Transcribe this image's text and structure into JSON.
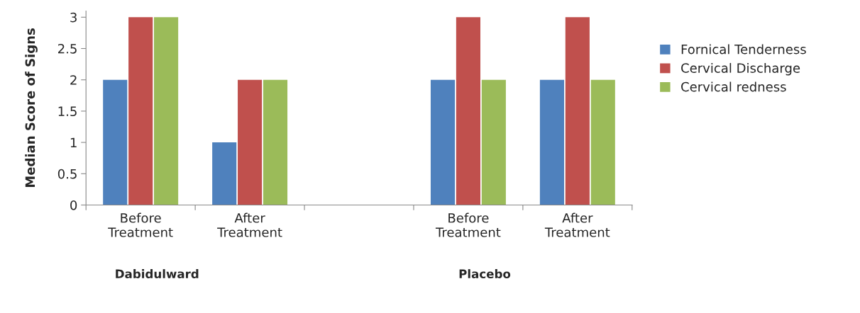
{
  "chart_data": {
    "type": "bar",
    "ylabel": "Median Score of Signs",
    "categories": [
      "Before\nTreatment",
      "After\nTreatment",
      null,
      "Before\nTreatment",
      "After\nTreatment"
    ],
    "series": [
      {
        "name": "Fornical Tenderness",
        "color": "#4f81bd",
        "values": [
          2,
          1,
          null,
          2,
          2
        ]
      },
      {
        "name": "Cervical Discharge",
        "color": "#c0504d",
        "values": [
          3,
          2,
          null,
          3,
          3
        ]
      },
      {
        "name": "Cervical redness",
        "color": "#9bbb59",
        "values": [
          3,
          2,
          null,
          2,
          2
        ]
      }
    ],
    "ylim": [
      0,
      3.1
    ],
    "yticks": [
      0,
      0.5,
      1,
      1.5,
      2,
      2.5,
      3
    ],
    "grid": false,
    "legend": "right",
    "annotations": [
      "Dabidulward",
      "Placebo"
    ]
  }
}
